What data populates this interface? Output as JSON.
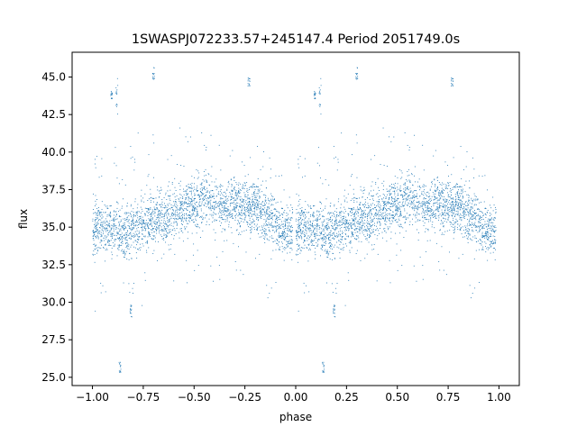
{
  "chart_data": {
    "type": "scatter",
    "title": "1SWASPJ072233.57+245147.4 Period 2051749.0s",
    "xlabel": "phase",
    "ylabel": "flux",
    "xlim": [
      -1.1,
      1.1
    ],
    "ylim": [
      24.45,
      46.65
    ],
    "xticks": [
      -1.0,
      -0.75,
      -0.5,
      -0.25,
      0.0,
      0.25,
      0.5,
      0.75,
      1.0
    ],
    "xtick_labels": [
      "−1.00",
      "−0.75",
      "−0.50",
      "−0.25",
      "0.00",
      "0.25",
      "0.50",
      "0.75",
      "1.00"
    ],
    "yticks": [
      25.0,
      27.5,
      30.0,
      32.5,
      35.0,
      37.5,
      40.0,
      42.5,
      45.0
    ],
    "ytick_labels": [
      "25.0",
      "27.5",
      "30.0",
      "32.5",
      "35.0",
      "37.5",
      "40.0",
      "42.5",
      "45.0"
    ],
    "grid": false,
    "legend": "none",
    "marker_color": "#1f77b4",
    "series": [
      {
        "phase_profile": {
          "x": [
            0.0,
            0.05,
            0.1,
            0.15,
            0.2,
            0.25,
            0.3,
            0.35,
            0.4,
            0.45,
            0.5,
            0.55,
            0.6,
            0.65,
            0.7,
            0.75,
            0.8,
            0.85,
            0.9,
            0.95,
            1.0
          ],
          "y": [
            34.9,
            35.2,
            35.0,
            34.6,
            34.9,
            35.3,
            35.5,
            35.6,
            35.8,
            36.2,
            36.6,
            36.9,
            36.7,
            36.4,
            36.6,
            36.5,
            36.3,
            35.9,
            35.2,
            34.7,
            34.9
          ]
        },
        "outlier_clusters": [
          {
            "x": 0.12,
            "y": [
              42.5,
              45.0
            ]
          },
          {
            "x": 0.095,
            "y": [
              43.5,
              44.2
            ]
          },
          {
            "x": 0.135,
            "y": [
              25.3,
              26.0
            ]
          },
          {
            "x": 0.3,
            "y": [
              44.8,
              45.7
            ]
          },
          {
            "x": 0.77,
            "y": [
              44.3,
              45.0
            ]
          },
          {
            "x": 0.19,
            "y": [
              29.0,
              30.0
            ]
          }
        ]
      }
    ]
  }
}
